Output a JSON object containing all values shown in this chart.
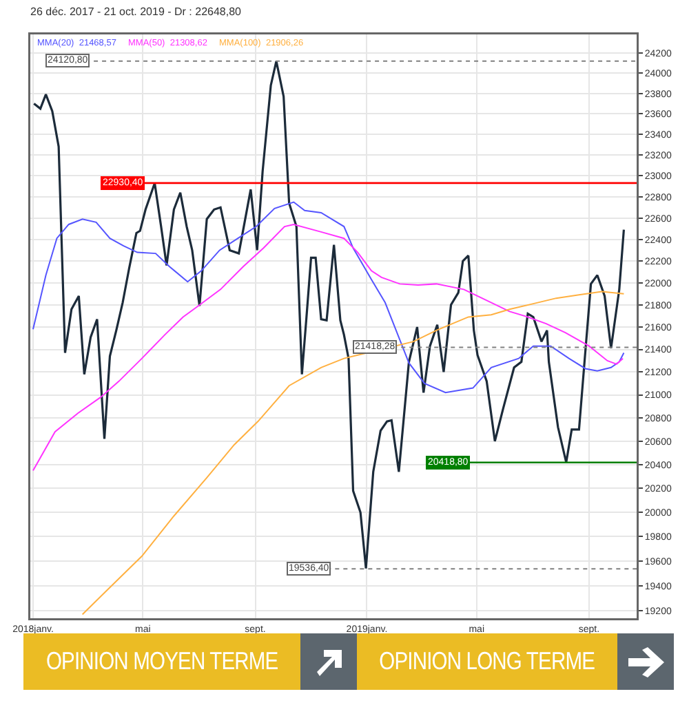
{
  "chart_data": {
    "type": "line",
    "title": "26 déc. 2017 - 21 oct. 2019 - Dr : 22648,80",
    "log": true,
    "grid": true,
    "xlim": [
      "2017-12-29",
      "2019-10-23"
    ],
    "xticks": [
      {
        "value": "2018-01-01",
        "label": "2018janv."
      },
      {
        "value": "2018-05-01",
        "label": "mai"
      },
      {
        "value": "2018-09-01",
        "label": "sept."
      },
      {
        "value": "2019-01-01",
        "label": "2019janv."
      },
      {
        "value": "2019-05-01",
        "label": "mai"
      },
      {
        "value": "2019-09-01",
        "label": "sept."
      }
    ],
    "ylim": [
      19140,
      24390
    ],
    "yticks": [
      19200,
      19400,
      19600,
      19800,
      20000,
      20200,
      20400,
      20600,
      20800,
      21000,
      21200,
      21400,
      21600,
      21800,
      22000,
      22200,
      22400,
      22600,
      22800,
      23000,
      23200,
      23400,
      23600,
      23800,
      24000,
      24200
    ],
    "series": [
      {
        "color": "#1c2b3a",
        "x": [
          "2018-01-02",
          "2018-01-09",
          "2018-01-15",
          "2018-01-22",
          "2018-01-29",
          "2018-02-05",
          "2018-02-12",
          "2018-02-20",
          "2018-02-26",
          "2018-03-05",
          "2018-03-12",
          "2018-03-20",
          "2018-03-26",
          "2018-04-02",
          "2018-04-09",
          "2018-04-16",
          "2018-04-24",
          "2018-04-28",
          "2018-05-04",
          "2018-05-14",
          "2018-05-21",
          "2018-05-27",
          "2018-06-04",
          "2018-06-11",
          "2018-06-18",
          "2018-06-24",
          "2018-07-02",
          "2018-07-10",
          "2018-07-18",
          "2018-07-25",
          "2018-08-04",
          "2018-08-14",
          "2018-08-27",
          "2018-09-03",
          "2018-09-09",
          "2018-09-18",
          "2018-09-24",
          "2018-10-02",
          "2018-10-08",
          "2018-10-16",
          "2018-10-22",
          "2018-10-27",
          "2018-11-01",
          "2018-11-06",
          "2018-11-12",
          "2018-11-18",
          "2018-11-26",
          "2018-12-03",
          "2018-12-07",
          "2018-12-12",
          "2018-12-17",
          "2018-12-25",
          "2018-12-31",
          "2019-01-08",
          "2019-01-16",
          "2019-01-23",
          "2019-01-28",
          "2019-02-05",
          "2019-02-16",
          "2019-02-25",
          "2019-03-04",
          "2019-03-11",
          "2019-03-19",
          "2019-03-26",
          "2019-04-03",
          "2019-04-11",
          "2019-04-16",
          "2019-04-22",
          "2019-04-28",
          "2019-05-02",
          "2019-05-12",
          "2019-05-21",
          "2019-05-30",
          "2019-06-11",
          "2019-06-19",
          "2019-06-26",
          "2019-07-02",
          "2019-07-11",
          "2019-07-17",
          "2019-07-19",
          "2019-07-29",
          "2019-08-07",
          "2019-08-13",
          "2019-08-21",
          "2019-08-27",
          "2019-09-03",
          "2019-09-10",
          "2019-09-18",
          "2019-09-25",
          "2019-10-04",
          "2019-10-09"
        ],
        "values": [
          23700,
          23650,
          23790,
          23625,
          23280,
          21370,
          21760,
          21880,
          21180,
          21510,
          21670,
          20620,
          21340,
          21570,
          21820,
          22130,
          22460,
          22480,
          22680,
          22930,
          22520,
          22160,
          22680,
          22840,
          22520,
          22300,
          21790,
          22590,
          22680,
          22700,
          22300,
          22270,
          22870,
          22300,
          23040,
          23880,
          24120,
          23770,
          22740,
          22520,
          21180,
          21690,
          22230,
          22230,
          21670,
          21660,
          22350,
          21660,
          21530,
          21320,
          20180,
          20000,
          19540,
          20340,
          20690,
          20770,
          20780,
          20340,
          21290,
          21600,
          21020,
          21430,
          21620,
          21200,
          21800,
          21910,
          22200,
          22250,
          21570,
          21350,
          21120,
          20600,
          20880,
          21240,
          21290,
          21720,
          21690,
          21470,
          21570,
          21290,
          20720,
          20420,
          20700,
          20700,
          21290,
          21990,
          22070,
          21880,
          21410,
          21940,
          22490
        ]
      },
      {
        "name": "MMA(20)  21468,57",
        "color": "#5555ff",
        "x": [
          "2018-01-01",
          "2018-01-15",
          "2018-01-27",
          "2018-02-09",
          "2018-02-24",
          "2018-03-11",
          "2018-03-26",
          "2018-04-10",
          "2018-04-25",
          "2018-05-15",
          "2018-05-30",
          "2018-06-19",
          "2018-07-04",
          "2018-07-24",
          "2018-08-13",
          "2018-09-02",
          "2018-09-22",
          "2018-10-13",
          "2018-10-25",
          "2018-11-12",
          "2018-12-07",
          "2018-12-17",
          "2019-01-06",
          "2019-01-21",
          "2019-02-01",
          "2019-02-16",
          "2019-03-05",
          "2019-03-28",
          "2019-04-27",
          "2019-05-17",
          "2019-06-16",
          "2019-07-02",
          "2019-07-21",
          "2019-08-10",
          "2019-08-28",
          "2019-09-10",
          "2019-09-25",
          "2019-10-04",
          "2019-10-09"
        ],
        "values": [
          21580,
          22070,
          22410,
          22540,
          22590,
          22560,
          22410,
          22340,
          22280,
          22270,
          22150,
          22010,
          22110,
          22300,
          22410,
          22520,
          22690,
          22750,
          22670,
          22650,
          22520,
          22320,
          22030,
          21820,
          21590,
          21280,
          21100,
          21020,
          21060,
          21240,
          21320,
          21430,
          21430,
          21320,
          21230,
          21210,
          21240,
          21290,
          21370
        ]
      },
      {
        "name": "MMA(50)  21308,62",
        "color": "#ff33ff",
        "x": [
          "2018-01-01",
          "2018-01-25",
          "2018-02-19",
          "2018-03-16",
          "2018-04-05",
          "2018-04-30",
          "2018-05-25",
          "2018-06-14",
          "2018-06-29",
          "2018-07-25",
          "2018-08-19",
          "2018-09-10",
          "2018-10-03",
          "2018-10-13",
          "2018-11-12",
          "2018-12-07",
          "2018-12-22",
          "2019-01-06",
          "2019-01-17",
          "2019-02-06",
          "2019-02-26",
          "2019-03-18",
          "2019-04-17",
          "2019-05-07",
          "2019-06-06",
          "2019-06-26",
          "2019-07-16",
          "2019-08-06",
          "2019-09-01",
          "2019-09-21",
          "2019-10-01",
          "2019-10-08"
        ],
        "values": [
          20350,
          20680,
          20840,
          20980,
          21120,
          21320,
          21530,
          21690,
          21780,
          21940,
          22150,
          22320,
          22520,
          22540,
          22470,
          22410,
          22280,
          22110,
          22050,
          21990,
          21980,
          21990,
          21940,
          21860,
          21740,
          21690,
          21630,
          21550,
          21430,
          21300,
          21270,
          21320
        ]
      },
      {
        "name": "MMA(100)  21906,26",
        "color": "#ffb040",
        "x": [
          "2018-02-24",
          "2018-03-21",
          "2018-04-30",
          "2018-06-04",
          "2018-07-10",
          "2018-08-09",
          "2018-09-04",
          "2018-10-08",
          "2018-11-12",
          "2018-12-07",
          "2019-02-21",
          "2019-03-18",
          "2019-04-22",
          "2019-05-17",
          "2019-06-06",
          "2019-07-02",
          "2019-07-27",
          "2019-08-21",
          "2019-09-15",
          "2019-10-09"
        ],
        "values": [
          19170,
          19350,
          19640,
          19970,
          20290,
          20570,
          20770,
          21080,
          21240,
          21320,
          21470,
          21570,
          21690,
          21710,
          21760,
          21810,
          21860,
          21890,
          21920,
          21900
        ]
      }
    ],
    "ref_lines": [
      {
        "axis": "y",
        "value": 24120.8,
        "label": "24120,80",
        "color": "#808080",
        "line_style": "dotted"
      },
      {
        "axis": "y",
        "value": 22930.4,
        "label": "22930,40",
        "color": "#ff0000",
        "line_style": "solid"
      },
      {
        "axis": "y",
        "value": 21418.28,
        "label": "21418,28",
        "color": "#808080",
        "line_style": "dotted"
      },
      {
        "axis": "y",
        "value": 20418.8,
        "label": "20418,80",
        "color": "#008000",
        "line_style": "solid"
      },
      {
        "axis": "y",
        "value": 19536.4,
        "label": "19536,40",
        "color": "#808080",
        "line_style": "dotted"
      }
    ],
    "annotations": [
      "OPINION MOYEN TERME",
      "OPINION LONG TERME"
    ]
  }
}
